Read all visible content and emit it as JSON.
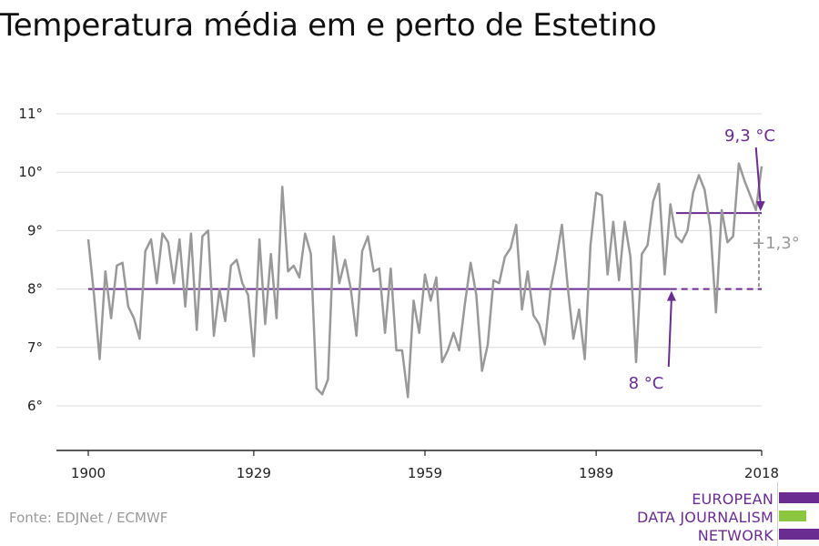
{
  "title": "Temperatura média em e perto de Estetino",
  "source": "Fonte: EDJNet / ECMWF",
  "brand": {
    "lines": [
      "EUROPEAN",
      "DATA JOURNALISM",
      "NETWORK"
    ],
    "colors": [
      "#6a2c91",
      "#8cc63e",
      "#6a2c91"
    ]
  },
  "chart_data": {
    "type": "line",
    "title": "Temperatura média em e perto de Estetino",
    "xlabel": "",
    "ylabel": "",
    "xlim": [
      1900,
      2019
    ],
    "ylim": [
      5.3,
      11.3
    ],
    "x_ticks": [
      1900,
      1929,
      1959,
      1989,
      2018
    ],
    "y_ticks": [
      6,
      7,
      8,
      9,
      10,
      11
    ],
    "y_tick_labels": [
      "6°",
      "7°",
      "8°",
      "9°",
      "10°",
      "11°"
    ],
    "grid": true,
    "colors": {
      "series": "#999999",
      "reference": "#6a2c91",
      "diff": "#999999"
    },
    "series": [
      {
        "x_start": 1900,
        "values": [
          8.85,
          7.9,
          6.8,
          8.3,
          7.5,
          8.4,
          8.45,
          7.7,
          7.5,
          7.15,
          8.65,
          8.85,
          8.1,
          8.95,
          8.8,
          8.1,
          8.85,
          7.7,
          8.95,
          7.3,
          8.9,
          9.0,
          7.2,
          8.0,
          7.45,
          8.4,
          8.5,
          8.1,
          7.9,
          6.85,
          8.85,
          7.4,
          8.6,
          7.5,
          9.75,
          8.3,
          8.4,
          8.2,
          8.95,
          8.6,
          6.3,
          6.2,
          6.45,
          8.9,
          8.1,
          8.5,
          8.0,
          7.2,
          8.65,
          8.9,
          8.3,
          8.35,
          7.25,
          8.35,
          6.95,
          6.95,
          6.15,
          7.8,
          7.25,
          8.25,
          7.8,
          8.2,
          6.75,
          6.95,
          7.25,
          6.95,
          7.75,
          8.45,
          7.9,
          6.6,
          7.05,
          8.15,
          8.1,
          8.55,
          8.7,
          9.1,
          7.65,
          8.3,
          7.55,
          7.4,
          7.05,
          8.0,
          8.5,
          9.1,
          8.05,
          7.15,
          7.65,
          6.8,
          8.75,
          9.65,
          9.6,
          8.25,
          9.15,
          8.15,
          9.15,
          8.55,
          6.75,
          8.6,
          8.75,
          9.5,
          9.8,
          8.25,
          9.45,
          8.9,
          8.8,
          9.0,
          9.65,
          9.95,
          9.7,
          9.05,
          7.6,
          9.35,
          8.8,
          8.9,
          10.15,
          9.85,
          9.6,
          9.35,
          10.1
        ]
      }
    ],
    "reference_lines": [
      {
        "value": 8.0,
        "x_start": 1900,
        "x_end": 2002,
        "style": "solid"
      },
      {
        "value": 8.0,
        "x_start": 2002,
        "x_end": 2018,
        "style": "dashed"
      },
      {
        "value": 9.3,
        "x_start": 2003,
        "x_end": 2018,
        "style": "solid"
      }
    ],
    "annotations": [
      {
        "text": "9,3 °C",
        "points_to": [
          2018,
          9.3
        ]
      },
      {
        "text": "8 °C",
        "points_to": [
          2002,
          8.0
        ]
      },
      {
        "text": "+1,3°",
        "between": [
          8.0,
          9.3
        ],
        "x": 2018
      }
    ]
  }
}
